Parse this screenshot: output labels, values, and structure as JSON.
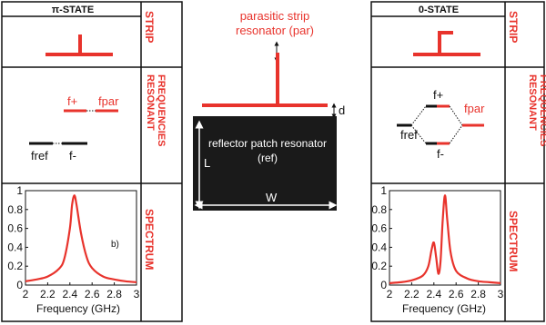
{
  "colors": {
    "red": "#e8332c",
    "black": "#111111",
    "patch": "#1a1a1a"
  },
  "left_panel": {
    "title": "π-STATE",
    "side_labels": [
      "STRIP",
      "RESONANT FREQUENCIES",
      "SPECTRUM"
    ],
    "freq_labels": {
      "f_plus": "f+",
      "f_par": "fpar",
      "f_ref": "fref",
      "f_minus": "f-"
    },
    "plot_tag": "b)",
    "xlabel": "Frequency (GHz)"
  },
  "right_panel": {
    "title": "0-STATE",
    "side_labels": [
      "STRIP",
      "RESONANT FREQUENCIES",
      "SPECTRUM"
    ],
    "freq_labels": {
      "f_plus": "f+",
      "f_par": "fpar",
      "f_ref": "fref",
      "f_minus": "f-"
    },
    "xlabel": "Frequency (GHz)"
  },
  "center": {
    "parasitic_label_1": "parasitic strip",
    "parasitic_label_2": "resonator (par)",
    "d_label": "d",
    "patch_label_1": "reflector patch resonator",
    "patch_label_2": "(ref)",
    "L_label": "L",
    "W_label": "W"
  },
  "chart_data": [
    {
      "type": "line",
      "panel": "π-STATE",
      "x": [
        2.0,
        2.1,
        2.2,
        2.3,
        2.35,
        2.4,
        2.42,
        2.44,
        2.46,
        2.5,
        2.55,
        2.6,
        2.7,
        2.8,
        2.9,
        3.0
      ],
      "y": [
        0.04,
        0.06,
        0.09,
        0.17,
        0.28,
        0.6,
        0.85,
        0.95,
        0.85,
        0.55,
        0.3,
        0.18,
        0.09,
        0.06,
        0.04,
        0.03
      ],
      "xlim": [
        2,
        3
      ],
      "ylim": [
        0,
        1
      ],
      "xticks": [
        "2",
        "2.2",
        "2.4",
        "2.6",
        "2.8",
        "3"
      ],
      "yticks": [
        "0",
        "0.2",
        "0.4",
        "0.6",
        "0.8",
        "1"
      ],
      "xlabel": "Frequency (GHz)"
    },
    {
      "type": "line",
      "panel": "0-STATE",
      "x": [
        2.0,
        2.1,
        2.2,
        2.3,
        2.35,
        2.38,
        2.4,
        2.42,
        2.44,
        2.46,
        2.48,
        2.5,
        2.52,
        2.55,
        2.6,
        2.7,
        2.8,
        2.9,
        3.0
      ],
      "y": [
        0.02,
        0.03,
        0.05,
        0.1,
        0.2,
        0.38,
        0.45,
        0.3,
        0.12,
        0.25,
        0.7,
        0.95,
        0.7,
        0.35,
        0.15,
        0.07,
        0.04,
        0.03,
        0.02
      ],
      "xlim": [
        2,
        3
      ],
      "ylim": [
        0,
        1
      ],
      "xticks": [
        "2",
        "2.2",
        "2.4",
        "2.6",
        "2.8",
        "3"
      ],
      "yticks": [
        "0",
        "0.2",
        "0.4",
        "0.6",
        "0.8",
        "1"
      ],
      "xlabel": "Frequency (GHz)"
    }
  ]
}
